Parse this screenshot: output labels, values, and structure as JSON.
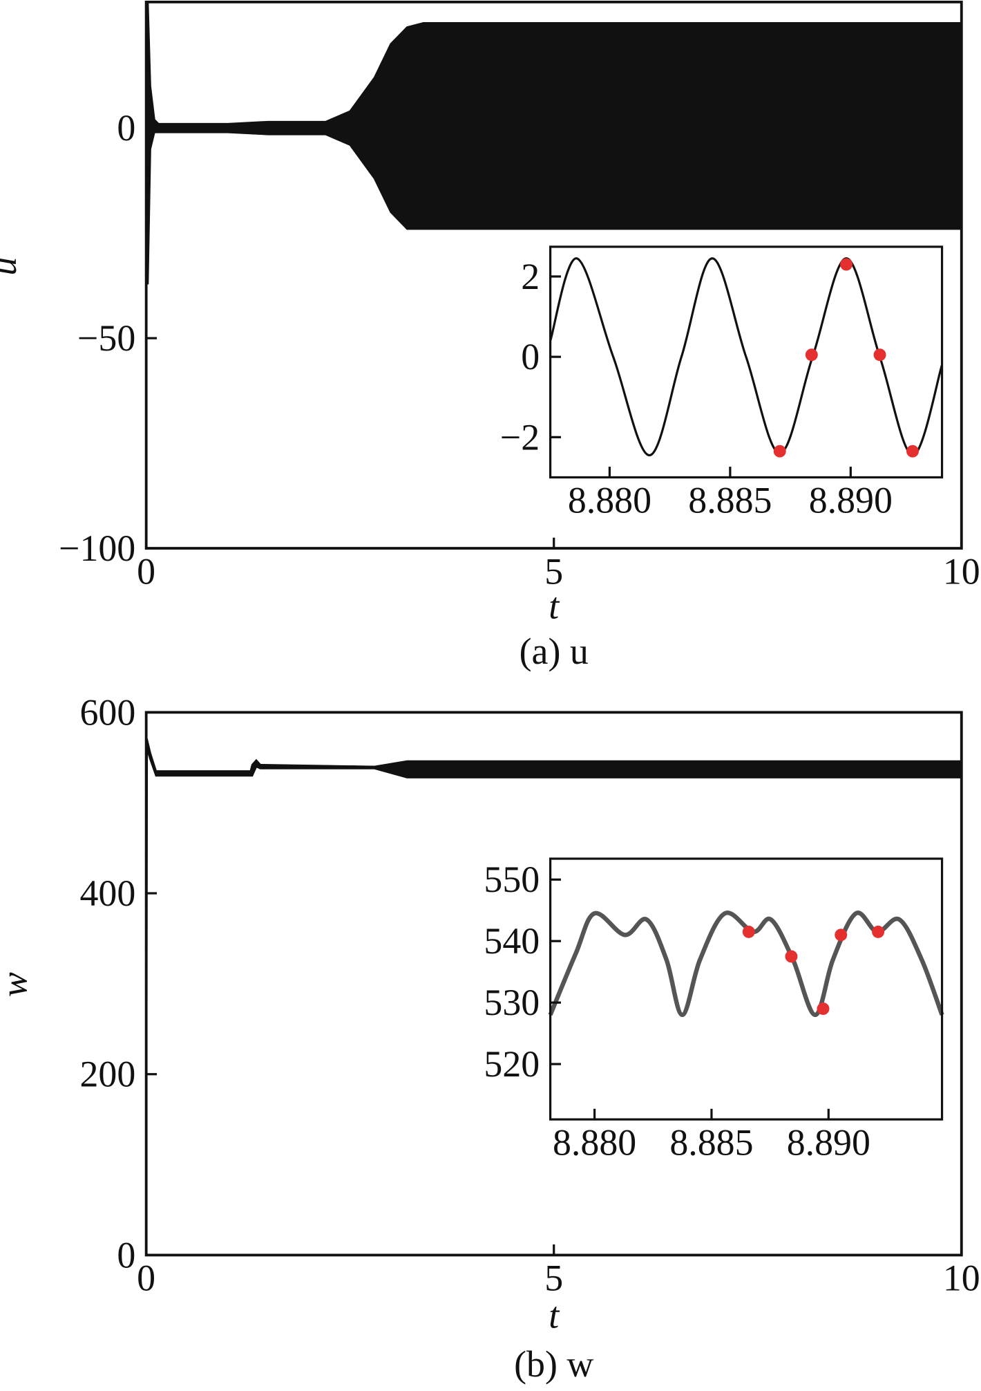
{
  "chart_data": [
    {
      "type": "band",
      "xlabel": "t",
      "ylabel": "u",
      "caption": "(a) u",
      "color": "#111",
      "x": [
        0,
        0.02,
        0.05,
        0.1,
        0.15,
        1.0,
        1.5,
        2.2,
        2.5,
        2.8,
        3.0,
        3.2,
        3.4,
        10
      ],
      "high": [
        30,
        30,
        10,
        2,
        1,
        1,
        1.5,
        1.5,
        4,
        12,
        20,
        24,
        25,
        25
      ],
      "low": [
        -37,
        -37,
        -5,
        -1,
        -1,
        -1,
        -1.5,
        -1.5,
        -4,
        -12,
        -20,
        -24,
        -24,
        -24
      ],
      "xlim": [
        0,
        10
      ],
      "xticks": [
        0,
        5,
        10
      ],
      "ylim": [
        -100,
        30
      ],
      "yticks": [
        {
          "value": -100,
          "label": "−100"
        },
        {
          "value": -50,
          "label": "−50"
        },
        0
      ]
    },
    {
      "type": "line",
      "color": "#111",
      "x": [
        8.87754,
        8.87864,
        8.88015,
        8.88165,
        8.88298,
        8.88426,
        8.88566,
        8.88706,
        8.88842,
        8.88982,
        8.89121,
        8.89257,
        8.89379
      ],
      "values": [
        0.4,
        2.45,
        0,
        -2.45,
        0,
        2.45,
        0,
        -2.4,
        0,
        2.45,
        0,
        -2.45,
        -0.2
      ],
      "markers": {
        "color": "#e53030",
        "x": [
          8.88706,
          8.88838,
          8.88982,
          8.89121,
          8.89257
        ],
        "values": [
          -2.35,
          0.05,
          2.3,
          0.05,
          -2.35
        ]
      },
      "xlim": [
        8.87754,
        8.89379
      ],
      "xticks": [
        {
          "value": 8.88,
          "label": "8.880"
        },
        {
          "value": 8.885,
          "label": "8.885"
        },
        {
          "value": 8.89,
          "label": "8.890"
        }
      ],
      "ylim": [
        -3.0,
        2.74
      ],
      "yticks": [
        {
          "value": -2,
          "label": "−2"
        },
        0,
        2
      ]
    },
    {
      "type": "band",
      "xlabel": "t",
      "ylabel": "w",
      "caption": "(b) w",
      "color": "#111",
      "x": [
        0,
        0.01,
        0.05,
        0.12,
        1.28,
        1.3,
        1.35,
        1.4,
        2.8,
        3.2,
        10
      ],
      "high": [
        570,
        570,
        555,
        535,
        535,
        542,
        547,
        542,
        540,
        546,
        546
      ],
      "low": [
        0,
        560,
        548,
        530,
        530,
        530,
        540,
        538,
        538,
        528,
        528
      ],
      "xlim": [
        0,
        10
      ],
      "xticks": [
        0,
        5,
        10
      ],
      "ylim": [
        0,
        600
      ],
      "yticks": [
        0,
        200,
        400,
        600
      ]
    },
    {
      "type": "line",
      "color": "#555",
      "x": [
        8.87811,
        8.8792,
        8.88,
        8.88129,
        8.88223,
        8.88307,
        8.88375,
        8.88451,
        8.88557,
        8.88678,
        8.88754,
        8.88848,
        8.88943,
        8.89019,
        8.89117,
        8.89208,
        8.89303,
        8.89398,
        8.89485
      ],
      "values": [
        528,
        538,
        544.5,
        541,
        543.5,
        537,
        528,
        537,
        544.5,
        541.5,
        543.5,
        537,
        528,
        537,
        544.5,
        541.5,
        543.5,
        537,
        528
      ],
      "markers": {
        "color": "#e53030",
        "x": [
          8.88659,
          8.88841,
          8.88977,
          8.89053,
          8.89212
        ],
        "values": [
          541.5,
          537.5,
          529,
          541,
          541.5
        ]
      },
      "xlim": [
        8.87811,
        8.89485
      ],
      "xticks": [
        {
          "value": 8.88,
          "label": "8.880"
        },
        {
          "value": 8.885,
          "label": "8.885"
        },
        {
          "value": 8.89,
          "label": "8.890"
        }
      ],
      "ylim": [
        511,
        553.4
      ],
      "yticks": [
        520,
        530,
        540,
        550
      ]
    }
  ]
}
